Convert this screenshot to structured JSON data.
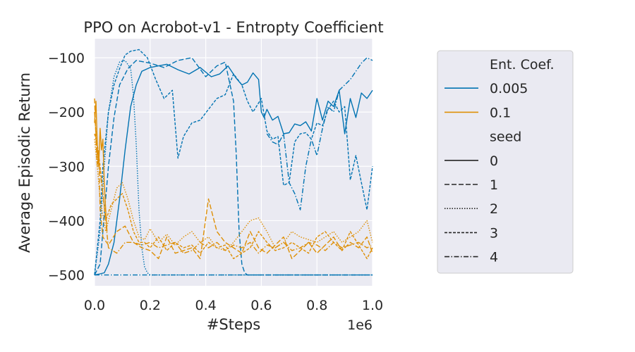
{
  "chart_data": {
    "type": "line",
    "title": "PPO on Acrobot-v1 - Entropty Coefficient",
    "xlabel": "#Steps",
    "ylabel": "Average Episodic Return",
    "x_offset_label": "1e6",
    "xlim": [
      0.0,
      1.0
    ],
    "ylim": [
      -520,
      -65
    ],
    "xticks": [
      0.0,
      0.2,
      0.4,
      0.6,
      0.8,
      1.0
    ],
    "xtick_labels": [
      "0.0",
      "0.2",
      "0.4",
      "0.6",
      "0.8",
      "1.0"
    ],
    "yticks": [
      -500,
      -400,
      -300,
      -200,
      -100
    ],
    "ytick_labels": [
      "−500",
      "−400",
      "−300",
      "−200",
      "−100"
    ],
    "grid": true,
    "background": "#eaeaf2",
    "legend": {
      "placement": "right, outside plot",
      "hue_title": "Ent. Coef.",
      "hue_entries": [
        {
          "label": "0.005",
          "color": "#0173b2"
        },
        {
          "label": "0.1",
          "color": "#de8f05"
        }
      ],
      "style_title": "seed",
      "style_entries": [
        {
          "label": "0",
          "dash": "solid"
        },
        {
          "label": "1",
          "dash": "dashed"
        },
        {
          "label": "2",
          "dash": "dotted"
        },
        {
          "label": "3",
          "dash": "densely-dashed"
        },
        {
          "label": "4",
          "dash": "dash-dot"
        }
      ]
    },
    "series": [
      {
        "ent_coef": "0.005",
        "seed": "0",
        "color": "#0173b2",
        "dash": "solid",
        "x": [
          0.0,
          0.02,
          0.035,
          0.05,
          0.07,
          0.09,
          0.11,
          0.13,
          0.15,
          0.17,
          0.2,
          0.23,
          0.26,
          0.3,
          0.34,
          0.38,
          0.42,
          0.45,
          0.48,
          0.51,
          0.53,
          0.55,
          0.57,
          0.59,
          0.6,
          0.61,
          0.62,
          0.64,
          0.66,
          0.68,
          0.7,
          0.72,
          0.74,
          0.76,
          0.78,
          0.8,
          0.82,
          0.84,
          0.86,
          0.88,
          0.9,
          0.92,
          0.94,
          0.96,
          0.98,
          1.0
        ],
        "y": [
          -500,
          -498,
          -496,
          -480,
          -440,
          -360,
          -270,
          -190,
          -150,
          -125,
          -118,
          -115,
          -112,
          -122,
          -130,
          -118,
          -135,
          -130,
          -115,
          -138,
          -150,
          -145,
          -128,
          -140,
          -200,
          -210,
          -195,
          -215,
          -208,
          -240,
          -238,
          -222,
          -225,
          -218,
          -235,
          -175,
          -215,
          -180,
          -190,
          -160,
          -240,
          -175,
          -210,
          -165,
          -175,
          -160
        ]
      },
      {
        "ent_coef": "0.005",
        "seed": "1",
        "color": "#0173b2",
        "dash": "dashed",
        "x": [
          0.0,
          0.02,
          0.03,
          0.05,
          0.07,
          0.09,
          0.12,
          0.15,
          0.2,
          0.25,
          0.3,
          0.35,
          0.4,
          0.44,
          0.47,
          0.5,
          0.51,
          0.52,
          0.53,
          0.54,
          0.55,
          0.56,
          0.6,
          0.65,
          0.7,
          0.72,
          0.75,
          0.78,
          0.8,
          0.85,
          0.9,
          0.95,
          0.98,
          1.0
        ],
        "y": [
          -500,
          -480,
          -420,
          -300,
          -210,
          -150,
          -120,
          -105,
          -110,
          -118,
          -105,
          -100,
          -135,
          -115,
          -108,
          -180,
          -280,
          -420,
          -480,
          -496,
          -500,
          -500,
          -500,
          -500,
          -500,
          -500,
          -500,
          -500,
          -500,
          -500,
          -500,
          -500,
          -500,
          -500
        ]
      },
      {
        "ent_coef": "0.005",
        "seed": "2",
        "color": "#0173b2",
        "dash": "dotted",
        "x": [
          0.0,
          0.02,
          0.035,
          0.05,
          0.07,
          0.09,
          0.11,
          0.13,
          0.14,
          0.15,
          0.16,
          0.17,
          0.18,
          0.19,
          0.2,
          0.22,
          0.25,
          0.3,
          0.35,
          0.4,
          0.45,
          0.5,
          0.55,
          0.6,
          0.65,
          0.7,
          0.75,
          0.8,
          0.85,
          0.9,
          0.95,
          1.0
        ],
        "y": [
          -500,
          -420,
          -300,
          -200,
          -135,
          -108,
          -105,
          -120,
          -170,
          -260,
          -380,
          -450,
          -485,
          -496,
          -500,
          -500,
          -500,
          -500,
          -500,
          -500,
          -500,
          -500,
          -500,
          -500,
          -500,
          -500,
          -500,
          -500,
          -500,
          -500,
          -500,
          -500
        ]
      },
      {
        "ent_coef": "0.005",
        "seed": "3",
        "color": "#0173b2",
        "dash": "densely-dashed",
        "x": [
          0.0,
          0.02,
          0.03,
          0.05,
          0.07,
          0.09,
          0.11,
          0.13,
          0.16,
          0.19,
          0.22,
          0.25,
          0.28,
          0.3,
          0.32,
          0.35,
          0.38,
          0.41,
          0.44,
          0.47,
          0.5,
          0.53,
          0.55,
          0.57,
          0.6,
          0.62,
          0.64,
          0.66,
          0.68,
          0.7,
          0.72,
          0.74,
          0.76,
          0.78,
          0.8,
          0.82,
          0.84,
          0.86,
          0.88,
          0.9,
          0.92,
          0.94,
          0.96,
          0.98,
          1.0
        ],
        "y": [
          -500,
          -400,
          -300,
          -200,
          -150,
          -120,
          -95,
          -88,
          -85,
          -100,
          -140,
          -175,
          -160,
          -285,
          -245,
          -220,
          -215,
          -195,
          -175,
          -168,
          -130,
          -150,
          -180,
          -200,
          -175,
          -235,
          -250,
          -245,
          -335,
          -330,
          -255,
          -240,
          -238,
          -250,
          -220,
          -225,
          -195,
          -180,
          -200,
          -190,
          -325,
          -280,
          -330,
          -380,
          -300
        ]
      },
      {
        "ent_coef": "0.005",
        "seed": "4",
        "color": "#0173b2",
        "dash": "dash-dot",
        "x": [
          0.0,
          0.04,
          0.1,
          0.15,
          0.2,
          0.25,
          0.3,
          0.35,
          0.4,
          0.42,
          0.45,
          0.48,
          0.5,
          0.52,
          0.55,
          0.6,
          0.65,
          0.7,
          0.75,
          0.8,
          0.85,
          0.9,
          0.92,
          0.94,
          0.96,
          0.98,
          1.0
        ],
        "y": [
          -500,
          -500,
          -500,
          -500,
          -500,
          -500,
          -500,
          -500,
          -500,
          -500,
          -500,
          -500,
          -500,
          -500,
          -500,
          -500,
          -500,
          -500,
          -500,
          -500,
          -500,
          -500,
          -500,
          -500,
          -500,
          -500,
          -500
        ]
      },
      {
        "ent_coef": "0.005",
        "seed": "4",
        "color": "#0173b2",
        "dash": "dash-dot",
        "x": [
          0.62,
          0.64,
          0.66,
          0.68,
          0.7,
          0.72,
          0.74,
          0.76,
          0.78,
          0.8,
          0.82,
          0.84,
          0.86,
          0.88,
          0.9,
          0.92,
          0.94,
          0.96,
          0.98,
          1.0
        ],
        "y": [
          -240,
          -255,
          -260,
          -240,
          -330,
          -350,
          -380,
          -300,
          -250,
          -280,
          -230,
          -190,
          -200,
          -160,
          -150,
          -140,
          -125,
          -110,
          -100,
          -105
        ]
      },
      {
        "ent_coef": "0.1",
        "seed": "0",
        "color": "#de8f05",
        "dash": "solid",
        "x": [
          0.0,
          0.005,
          0.01,
          0.015,
          0.02,
          0.025,
          0.03,
          0.035,
          0.04,
          0.045
        ],
        "y": [
          -220,
          -180,
          -260,
          -300,
          -230,
          -270,
          -250,
          -330,
          -380,
          -420
        ]
      },
      {
        "ent_coef": "0.1",
        "seed": "1",
        "color": "#de8f05",
        "dash": "dashed",
        "x": [
          0.0,
          0.005,
          0.01,
          0.015,
          0.02,
          0.03,
          0.05,
          0.08,
          0.11,
          0.14,
          0.17,
          0.2,
          0.23,
          0.26,
          0.29,
          0.32,
          0.35,
          0.38,
          0.41,
          0.44,
          0.47,
          0.5,
          0.53,
          0.56,
          0.59,
          0.62,
          0.65,
          0.68,
          0.71,
          0.74,
          0.77,
          0.8,
          0.83,
          0.86,
          0.89,
          0.92,
          0.95,
          0.98,
          1.0
        ],
        "y": [
          -175,
          -250,
          -300,
          -270,
          -380,
          -430,
          -445,
          -420,
          -410,
          -440,
          -450,
          -455,
          -470,
          -430,
          -460,
          -455,
          -450,
          -470,
          -360,
          -420,
          -440,
          -450,
          -460,
          -420,
          -450,
          -460,
          -445,
          -430,
          -470,
          -455,
          -440,
          -460,
          -445,
          -430,
          -455,
          -440,
          -450,
          -430,
          -460
        ]
      },
      {
        "ent_coef": "0.1",
        "seed": "2",
        "color": "#de8f05",
        "dash": "dotted",
        "x": [
          0.0,
          0.01,
          0.02,
          0.04,
          0.06,
          0.08,
          0.1,
          0.12,
          0.14,
          0.16,
          0.18,
          0.2,
          0.23,
          0.26,
          0.29,
          0.32,
          0.35,
          0.38,
          0.41,
          0.44,
          0.47,
          0.5,
          0.53,
          0.56,
          0.59,
          0.62,
          0.65,
          0.68,
          0.71,
          0.74,
          0.77,
          0.8,
          0.83,
          0.86,
          0.89,
          0.92,
          0.95,
          0.98,
          1.0
        ],
        "y": [
          -250,
          -300,
          -360,
          -420,
          -380,
          -340,
          -330,
          -360,
          -400,
          -430,
          -435,
          -415,
          -440,
          -425,
          -445,
          -430,
          -420,
          -440,
          -430,
          -450,
          -455,
          -440,
          -420,
          -400,
          -395,
          -420,
          -450,
          -440,
          -420,
          -430,
          -435,
          -440,
          -430,
          -420,
          -440,
          -430,
          -420,
          -400,
          -440
        ]
      },
      {
        "ent_coef": "0.1",
        "seed": "3",
        "color": "#de8f05",
        "dash": "densely-dashed",
        "x": [
          0.0,
          0.01,
          0.02,
          0.04,
          0.06,
          0.08,
          0.1,
          0.12,
          0.14,
          0.16,
          0.18,
          0.2,
          0.23,
          0.26,
          0.29,
          0.32,
          0.35,
          0.38,
          0.41,
          0.44,
          0.47,
          0.5,
          0.53,
          0.56,
          0.59,
          0.62,
          0.65,
          0.68,
          0.71,
          0.74,
          0.77,
          0.8,
          0.83,
          0.86,
          0.89,
          0.92,
          0.95,
          0.98,
          1.0
        ],
        "y": [
          -240,
          -260,
          -300,
          -400,
          -370,
          -360,
          -350,
          -380,
          -420,
          -440,
          -440,
          -450,
          -430,
          -455,
          -440,
          -450,
          -445,
          -460,
          -440,
          -450,
          -445,
          -470,
          -460,
          -450,
          -420,
          -440,
          -455,
          -450,
          -440,
          -450,
          -460,
          -430,
          -420,
          -440,
          -455,
          -420,
          -445,
          -470,
          -450
        ]
      },
      {
        "ent_coef": "0.1",
        "seed": "4",
        "color": "#de8f05",
        "dash": "dash-dot",
        "x": [
          0.0,
          0.005,
          0.01,
          0.02,
          0.03,
          0.05,
          0.08,
          0.11,
          0.14,
          0.17,
          0.2,
          0.23,
          0.26,
          0.29,
          0.32,
          0.35,
          0.38,
          0.41,
          0.44,
          0.47,
          0.5,
          0.53,
          0.56,
          0.59,
          0.62,
          0.65,
          0.68,
          0.71,
          0.74,
          0.77,
          0.8,
          0.83,
          0.86,
          0.89,
          0.92,
          0.95,
          0.98,
          1.0
        ],
        "y": [
          -200,
          -240,
          -280,
          -310,
          -350,
          -450,
          -460,
          -440,
          -440,
          -445,
          -440,
          -450,
          -445,
          -440,
          -460,
          -455,
          -440,
          -450,
          -440,
          -455,
          -445,
          -450,
          -440,
          -460,
          -445,
          -450,
          -440,
          -455,
          -450,
          -440,
          -445,
          -455,
          -440,
          -450,
          -445,
          -440,
          -450,
          -445
        ]
      }
    ]
  }
}
